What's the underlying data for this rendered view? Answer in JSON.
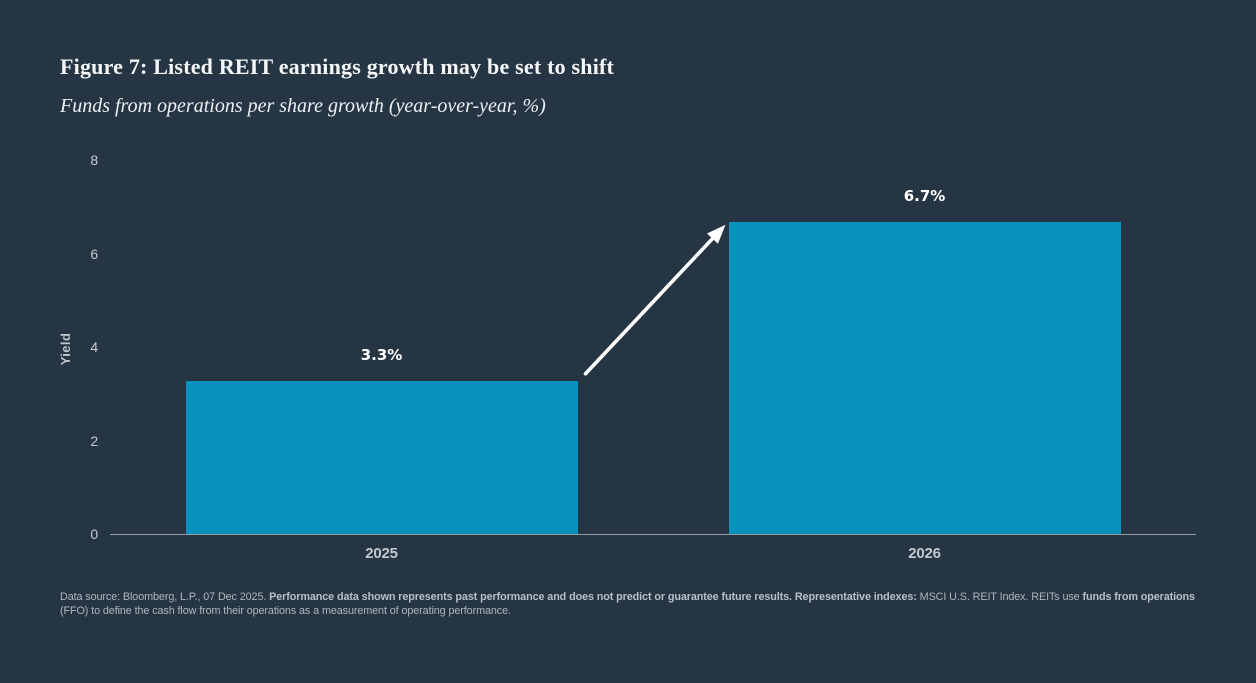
{
  "header": {
    "title": "Figure 7: Listed REIT earnings growth may be set to shift",
    "subtitle": "Funds from operations per share growth (year-over-year, %)"
  },
  "chart_data": {
    "type": "bar",
    "title": "Figure 7: Listed REIT earnings growth may be set to shift",
    "subtitle": "Funds from operations per share growth (year-over-year, %)",
    "categories": [
      "2025",
      "2026"
    ],
    "values": [
      3.3,
      6.7
    ],
    "value_labels": [
      "3.3%",
      "6.7%"
    ],
    "xlabel": "",
    "ylabel": "Yield",
    "ylim": [
      0,
      8
    ],
    "yticks": [
      0,
      2,
      4,
      6,
      8
    ],
    "grid": false,
    "legend": "none",
    "bar_color": "#0991BE",
    "annotations": [
      {
        "type": "arrow",
        "from_category": "2025",
        "to_category": "2026",
        "direction": "up-right",
        "color": "#FFFFFF"
      }
    ]
  },
  "colors": {
    "background": "#263543",
    "bar": "#0991BE",
    "axis_line": "#939BA3",
    "tick_label": "#C6CBD0",
    "value_label": "#FFFFFF",
    "title_text": "#F4F6F7",
    "footnote_text": "#AFB6BD",
    "arrow": "#FFFFFF"
  },
  "footnote": {
    "lines": [
      [
        {
          "text": "Data source: Bloomberg, L.P., 07 Dec 2025. ",
          "bold": false
        },
        {
          "text": "Performance data shown represents past performance and does not predict or guarantee future results. Representative indexes:",
          "bold": true
        },
        {
          "text": " MSCI U.S. REIT Index. REITs use ",
          "bold": false
        },
        {
          "text": "funds from operations",
          "bold": true
        }
      ],
      [
        {
          "text": "(FFO) to define the cash flow from their operations as a measurement of operating performance.",
          "bold": false
        }
      ]
    ]
  }
}
